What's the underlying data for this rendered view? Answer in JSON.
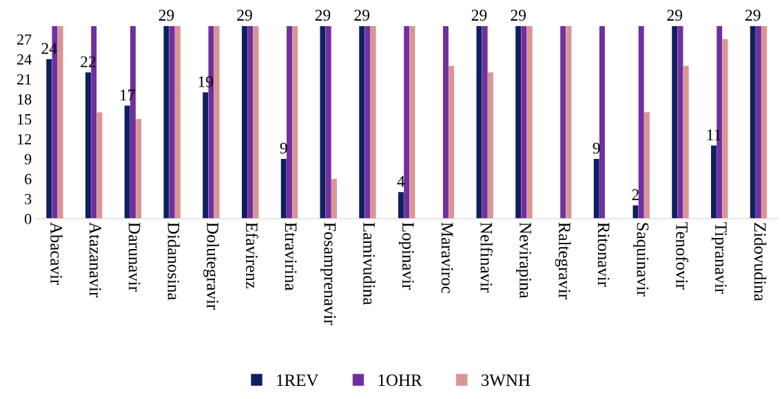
{
  "chart_data": {
    "type": "bar",
    "categories": [
      "Abacavir",
      "Atazanavir",
      "Darunavir",
      "Didanosina",
      "Dolutegravir",
      "Efavirenz",
      "Etravirina",
      "Fosamprenavir",
      "Lamivudina",
      "Lopinavir",
      "Maraviroc",
      "Nelfinavir",
      "Nevirapina",
      "Raltegravir",
      "Ritonavir",
      "Saquinavir",
      "Tenofovir",
      "Tipranavir",
      "Zidovudina"
    ],
    "series": [
      {
        "name": "1REV",
        "color": "#0f2060",
        "values": [
          24,
          22,
          17,
          29,
          19,
          29,
          9,
          29,
          29,
          4,
          0,
          29,
          29,
          0,
          9,
          2,
          29,
          11,
          29
        ],
        "value_labels": [
          "24",
          "22",
          "17",
          "29",
          "19",
          "29",
          "9",
          "29",
          "29",
          "4",
          null,
          "29",
          "29",
          null,
          "9",
          "2",
          "29",
          "11",
          "29"
        ]
      },
      {
        "name": "1OHR",
        "color": "#7030a0",
        "values": [
          29,
          29,
          29,
          29,
          29,
          29,
          29,
          29,
          29,
          29,
          29,
          29,
          29,
          29,
          29,
          29,
          29,
          29,
          29
        ]
      },
      {
        "name": "3WNH",
        "color": "#d99594",
        "values": [
          29,
          16,
          15,
          29,
          29,
          29,
          29,
          6,
          29,
          29,
          23,
          22,
          29,
          29,
          0,
          16,
          23,
          27,
          29
        ]
      }
    ],
    "ylim": [
      0,
      29
    ],
    "yticks": [
      0,
      3,
      6,
      9,
      12,
      15,
      18,
      21,
      24,
      27
    ],
    "legend": "bottom",
    "grid": false
  }
}
